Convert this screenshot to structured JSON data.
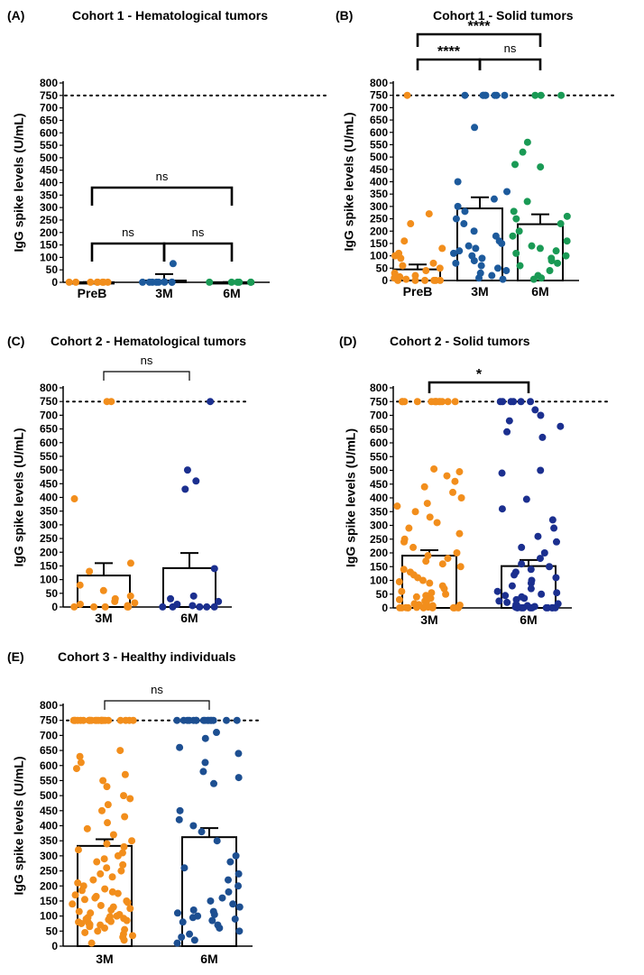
{
  "chart_data": [
    {
      "panel": "(A)",
      "title": "Cohort 1 - Hematological tumors",
      "type": "bar",
      "ylabel": "IgG spike levels (U/mL)",
      "xlabel": "",
      "ylim": [
        0,
        800
      ],
      "yticks": [
        0,
        50,
        100,
        150,
        200,
        250,
        300,
        350,
        400,
        450,
        500,
        550,
        600,
        650,
        700,
        750,
        800
      ],
      "threshold": 750,
      "categories": [
        "PreB",
        "3M",
        "6M"
      ],
      "colors": [
        "#f28e1c",
        "#1d5a9c",
        "#1a9a55"
      ],
      "means": [
        0.4,
        7,
        0.4
      ],
      "sem": [
        0.4,
        26,
        0.4
      ],
      "points": [
        [
          0.4,
          0.4,
          0.4,
          0.4,
          0.4,
          0.4,
          0.4,
          0.4
        ],
        [
          0.4,
          0.4,
          0.4,
          0.4,
          0.4,
          0.4,
          0.4,
          0.4,
          2,
          75
        ],
        [
          0.4,
          0.4,
          0.4,
          0.4,
          0.4,
          0.4
        ]
      ],
      "comparisons": [
        {
          "from": 0,
          "to": 1,
          "label": "ns"
        },
        {
          "from": 1,
          "to": 2,
          "label": "ns"
        },
        {
          "from": 0,
          "to": 2,
          "label": "ns"
        }
      ]
    },
    {
      "panel": "(B)",
      "title": "Cohort 1 - Solid  tumors",
      "type": "bar",
      "ylabel": "IgG spike levels (U/mL)",
      "xlabel": "",
      "ylim": [
        0,
        800
      ],
      "yticks": [
        0,
        50,
        100,
        150,
        200,
        250,
        300,
        350,
        400,
        450,
        500,
        550,
        600,
        650,
        700,
        750,
        800
      ],
      "threshold": 750,
      "categories": [
        "PreB",
        "3M",
        "6M"
      ],
      "colors": [
        "#f28e1c",
        "#1d5a9c",
        "#1a9a55"
      ],
      "means": [
        45,
        292,
        228
      ],
      "sem": [
        20,
        45,
        40
      ],
      "points": [
        [
          750,
          270,
          230,
          160,
          130,
          110,
          100,
          90,
          70,
          60,
          50,
          40,
          30,
          20,
          15,
          10,
          5,
          0.4,
          0.4,
          0.4,
          0.4,
          0.4,
          0.4
        ],
        [
          750,
          750,
          750,
          750,
          750,
          750,
          750,
          750,
          620,
          400,
          360,
          330,
          300,
          280,
          250,
          230,
          200,
          180,
          160,
          150,
          140,
          130,
          120,
          110,
          100,
          90,
          80,
          70,
          60,
          50,
          40,
          30,
          20,
          10,
          5
        ],
        [
          750,
          750,
          750,
          560,
          520,
          470,
          460,
          320,
          280,
          260,
          250,
          230,
          200,
          180,
          160,
          140,
          130,
          120,
          110,
          100,
          90,
          80,
          70,
          60,
          40,
          20,
          10,
          5
        ]
      ],
      "comparisons": [
        {
          "from": 0,
          "to": 1,
          "label": "****"
        },
        {
          "from": 1,
          "to": 2,
          "label": "ns"
        },
        {
          "from": 0,
          "to": 2,
          "label": "****"
        }
      ]
    },
    {
      "panel": "(C)",
      "title": "Cohort 2 - Hematological tumors",
      "type": "bar",
      "ylabel": "IgG spike levels (U/mL)",
      "xlabel": "",
      "ylim": [
        0,
        800
      ],
      "yticks": [
        0,
        50,
        100,
        150,
        200,
        250,
        300,
        350,
        400,
        450,
        500,
        550,
        600,
        650,
        700,
        750,
        800
      ],
      "threshold": 750,
      "categories": [
        "3M",
        "6M"
      ],
      "colors": [
        "#f28e1c",
        "#1b2f8f"
      ],
      "means": [
        115,
        142
      ],
      "sem": [
        45,
        55
      ],
      "points": [
        [
          750,
          750,
          395,
          160,
          130,
          80,
          60,
          40,
          30,
          20,
          15,
          10,
          5,
          0.4,
          0.4,
          0.4,
          0.4,
          0.4
        ],
        [
          750,
          500,
          460,
          430,
          140,
          40,
          30,
          20,
          10,
          5,
          0.4,
          0.4,
          0.4,
          0.4,
          0.4
        ]
      ],
      "comparisons": [
        {
          "from": 0,
          "to": 1,
          "label": "ns"
        }
      ]
    },
    {
      "panel": "(D)",
      "title": "Cohort 2 - Solid tumors",
      "type": "bar",
      "ylabel": "IgG spike levels (U/mL)",
      "xlabel": "",
      "ylim": [
        0,
        800
      ],
      "yticks": [
        0,
        50,
        100,
        150,
        200,
        250,
        300,
        350,
        400,
        450,
        500,
        550,
        600,
        650,
        700,
        750,
        800
      ],
      "threshold": 750,
      "categories": [
        "3M",
        "6M"
      ],
      "colors": [
        "#f28e1c",
        "#1b2f8f"
      ],
      "means": [
        190,
        152
      ],
      "sem": [
        20,
        22
      ],
      "points": [
        [
          750,
          750,
          750,
          750,
          750,
          750,
          750,
          750,
          750,
          750,
          750,
          750,
          750,
          750,
          505,
          495,
          480,
          460,
          440,
          420,
          400,
          380,
          370,
          350,
          330,
          310,
          290,
          270,
          250,
          240,
          220,
          200,
          190,
          180,
          170,
          160,
          150,
          140,
          130,
          120,
          110,
          100,
          95,
          90,
          80,
          70,
          60,
          55,
          50,
          45,
          40,
          35,
          30,
          25,
          20,
          15,
          12,
          10,
          8,
          5,
          3,
          2,
          1,
          0.4,
          0.4,
          0.4,
          0.4,
          0.4,
          0.4,
          0.4,
          0.4,
          0.4
        ],
        [
          750,
          750,
          750,
          750,
          750,
          750,
          720,
          700,
          680,
          660,
          640,
          620,
          500,
          490,
          395,
          360,
          320,
          290,
          260,
          240,
          220,
          200,
          180,
          160,
          150,
          140,
          130,
          120,
          110,
          100,
          90,
          80,
          70,
          60,
          55,
          50,
          45,
          40,
          35,
          30,
          25,
          20,
          15,
          12,
          10,
          8,
          5,
          3,
          2,
          1,
          0.4,
          0.4,
          0.4,
          0.4,
          0.4,
          0.4,
          0.4,
          0.4,
          0.4,
          0.4
        ]
      ],
      "comparisons": [
        {
          "from": 0,
          "to": 1,
          "label": "*"
        }
      ]
    },
    {
      "panel": "(E)",
      "title": "Cohort 3 - Healthy individuals",
      "type": "bar",
      "ylabel": "IgG spike levels (U/mL)",
      "xlabel": "",
      "ylim": [
        0,
        800
      ],
      "yticks": [
        0,
        50,
        100,
        150,
        200,
        250,
        300,
        350,
        400,
        450,
        500,
        550,
        600,
        650,
        700,
        750,
        800
      ],
      "threshold": 750,
      "categories": [
        "3M",
        "6M"
      ],
      "colors": [
        "#f28e1c",
        "#1d4f91"
      ],
      "means": [
        333,
        362
      ],
      "sem": [
        22,
        30
      ],
      "points": [
        [
          750,
          750,
          750,
          750,
          750,
          750,
          750,
          750,
          750,
          750,
          750,
          750,
          750,
          750,
          750,
          750,
          750,
          750,
          750,
          750,
          750,
          750,
          750,
          750,
          650,
          630,
          610,
          590,
          570,
          550,
          530,
          500,
          490,
          470,
          450,
          430,
          410,
          390,
          370,
          350,
          340,
          330,
          320,
          310,
          300,
          290,
          280,
          270,
          260,
          250,
          240,
          230,
          220,
          210,
          200,
          190,
          185,
          180,
          175,
          170,
          165,
          160,
          155,
          150,
          145,
          140,
          135,
          130,
          125,
          120,
          115,
          110,
          105,
          100,
          98,
          95,
          92,
          90,
          88,
          85,
          82,
          80,
          78,
          75,
          72,
          70,
          65,
          60,
          55,
          50,
          45,
          40,
          35,
          30,
          20,
          10
        ],
        [
          750,
          750,
          750,
          750,
          750,
          750,
          750,
          750,
          750,
          750,
          750,
          750,
          750,
          750,
          750,
          750,
          710,
          690,
          660,
          640,
          610,
          580,
          560,
          540,
          450,
          420,
          400,
          380,
          350,
          300,
          280,
          260,
          240,
          220,
          200,
          180,
          160,
          150,
          140,
          130,
          120,
          115,
          110,
          105,
          100,
          95,
          90,
          85,
          80,
          70,
          60,
          50,
          40,
          30,
          20,
          10
        ]
      ],
      "comparisons": [
        {
          "from": 0,
          "to": 1,
          "label": "ns"
        }
      ]
    }
  ]
}
